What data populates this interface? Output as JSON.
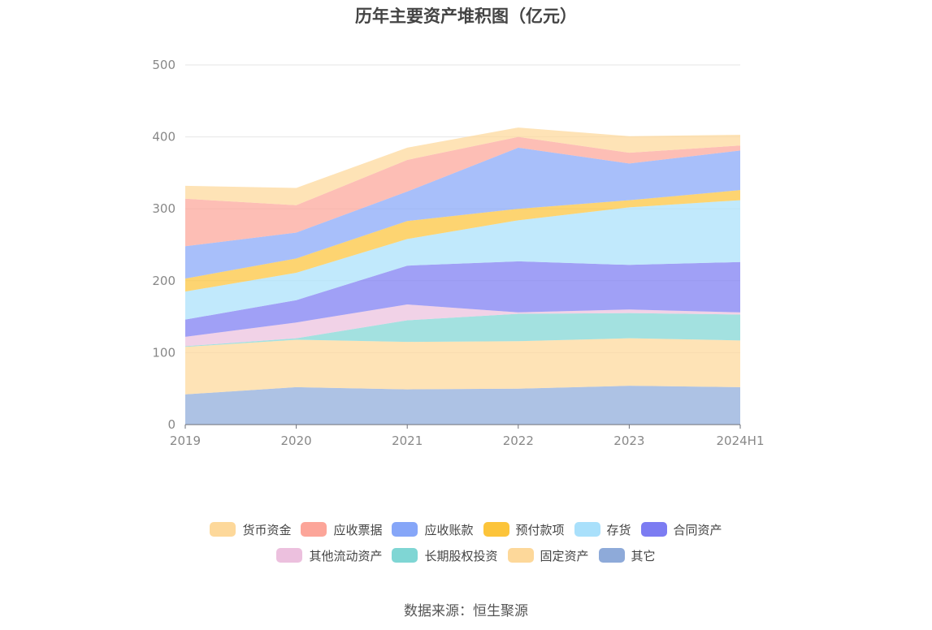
{
  "title": "历年主要资产堆积图（亿元）",
  "source_note": "数据来源：恒生聚源",
  "chart_data": {
    "type": "area",
    "stacked": true,
    "title": "历年主要资产堆积图（亿元）",
    "x": [
      "2019",
      "2020",
      "2021",
      "2022",
      "2023",
      "2024H1"
    ],
    "ylim": [
      0,
      500
    ],
    "yticks": [
      0,
      100,
      200,
      300,
      400,
      500
    ],
    "grid": true,
    "legend_position": "bottom",
    "series": [
      {
        "name": "其它",
        "color": "#8eaad9",
        "values": [
          42,
          52,
          49,
          50,
          54,
          52
        ]
      },
      {
        "name": "固定资产",
        "color": "#fdd89a",
        "values": [
          66,
          66,
          66,
          66,
          66,
          65
        ]
      },
      {
        "name": "长期股权投资",
        "color": "#7fd6d4",
        "values": [
          1,
          2,
          30,
          38,
          35,
          36
        ]
      },
      {
        "name": "其他流动资产",
        "color": "#ecc0de",
        "values": [
          13,
          22,
          22,
          2,
          5,
          3
        ]
      },
      {
        "name": "合同资产",
        "color": "#7c7cf2",
        "values": [
          24,
          31,
          54,
          71,
          62,
          70
        ]
      },
      {
        "name": "存货",
        "color": "#a9e0fb",
        "values": [
          39,
          38,
          37,
          57,
          80,
          86
        ]
      },
      {
        "name": "预付款项",
        "color": "#fcc43a",
        "values": [
          18,
          20,
          25,
          16,
          10,
          14
        ]
      },
      {
        "name": "应收账款",
        "color": "#86a6f8",
        "values": [
          45,
          36,
          41,
          85,
          51,
          55
        ]
      },
      {
        "name": "应收票据",
        "color": "#fca599",
        "values": [
          66,
          38,
          44,
          15,
          15,
          7
        ]
      },
      {
        "name": "货币资金",
        "color": "#fdd89a",
        "values": [
          18,
          24,
          17,
          13,
          23,
          15
        ]
      }
    ]
  },
  "legend": {
    "row1": [
      {
        "label": "货币资金",
        "color": "#fdd89a"
      },
      {
        "label": "应收票据",
        "color": "#fca599"
      },
      {
        "label": "应收账款",
        "color": "#86a6f8"
      },
      {
        "label": "预付款项",
        "color": "#fcc43a"
      },
      {
        "label": "存货",
        "color": "#a9e0fb"
      },
      {
        "label": "合同资产",
        "color": "#7c7cf2"
      }
    ],
    "row2": [
      {
        "label": "其他流动资产",
        "color": "#ecc0de"
      },
      {
        "label": "长期股权投资",
        "color": "#7fd6d4"
      },
      {
        "label": "固定资产",
        "color": "#fdd89a"
      },
      {
        "label": "其它",
        "color": "#8eaad9"
      }
    ]
  }
}
